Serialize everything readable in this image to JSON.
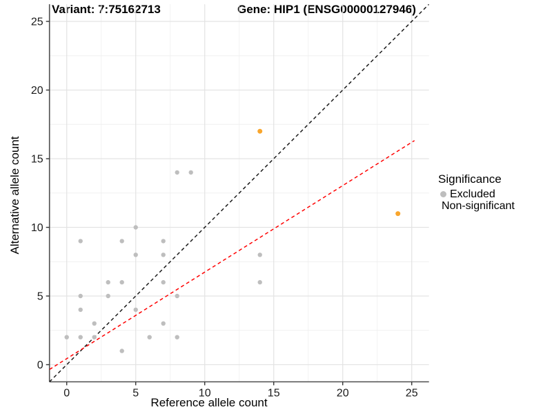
{
  "chart_data": {
    "type": "scatter",
    "titles": {
      "variant": "Variant: 7:75162713",
      "gene": "Gene: HIP1 (ENSG00000127946)"
    },
    "xlabel": "Reference allele count",
    "ylabel": "Alternative allele count",
    "xlim": [
      -1.25,
      26.25
    ],
    "ylim": [
      -1.25,
      26.25
    ],
    "x_ticks": [
      0,
      5,
      10,
      15,
      20,
      25
    ],
    "y_ticks": [
      0,
      5,
      10,
      15,
      20,
      25
    ],
    "grid": {
      "major_every": 5,
      "minor_every": 2.5,
      "major_color": "#E3E3E3",
      "minor_color": "#F0F0F0"
    },
    "axis_color": "#4D4D4D",
    "tick_label_color": "#1A1A1A",
    "legend": {
      "title": "Significance",
      "position": "right",
      "items": [
        {
          "label": "Excluded",
          "color": "#BEBEBE"
        },
        {
          "label": "Non-significant",
          "color": "#F9A62D"
        }
      ]
    },
    "series": [
      {
        "name": "Excluded",
        "color": "#BEBEBE",
        "points": [
          [
            0,
            2
          ],
          [
            1,
            2
          ],
          [
            1,
            4
          ],
          [
            1,
            5
          ],
          [
            1,
            9
          ],
          [
            2,
            2
          ],
          [
            2,
            3
          ],
          [
            3,
            5
          ],
          [
            3,
            6
          ],
          [
            4,
            1
          ],
          [
            4,
            6
          ],
          [
            4,
            9
          ],
          [
            5,
            4
          ],
          [
            5,
            8
          ],
          [
            5,
            10
          ],
          [
            6,
            2
          ],
          [
            7,
            3
          ],
          [
            7,
            6
          ],
          [
            7,
            8
          ],
          [
            7,
            9
          ],
          [
            8,
            2
          ],
          [
            8,
            5
          ],
          [
            8,
            14
          ],
          [
            9,
            14
          ],
          [
            14,
            6
          ],
          [
            14,
            8
          ]
        ]
      },
      {
        "name": "Non-significant",
        "color": "#F9A62D",
        "points": [
          [
            14,
            17
          ],
          [
            24,
            11
          ]
        ]
      }
    ],
    "lines": [
      {
        "name": "identity-line",
        "color": "#1A1A1A",
        "style": "dashed",
        "x1": -1.25,
        "y1": -1.25,
        "x2": 26.25,
        "y2": 26.25
      },
      {
        "name": "fit-line",
        "color": "#FF0000",
        "style": "dashed",
        "x1": -1.25,
        "y1": -0.35,
        "x2": 25.2,
        "y2": 16.32
      }
    ]
  }
}
